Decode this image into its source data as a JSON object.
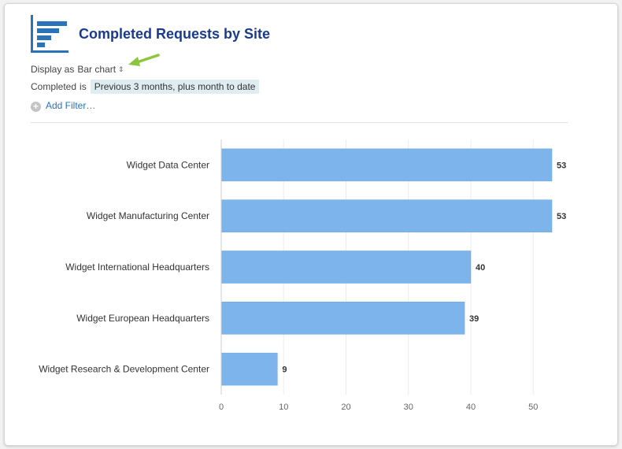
{
  "header": {
    "title": "Completed Requests by Site"
  },
  "display": {
    "prefix": "Display as",
    "chart_type": "Bar chart"
  },
  "filter": {
    "field": "Completed",
    "operator": "is",
    "value": "Previous 3 months, plus month to date"
  },
  "add_filter": {
    "label": "Add Filter…"
  },
  "colors": {
    "bar": "#7eb4ec",
    "bar_stroke": "#6aa3e0",
    "title": "#1a3a8c",
    "link": "#2a73c2",
    "arrow": "#8cc63f"
  },
  "chart_data": {
    "type": "bar",
    "orientation": "horizontal",
    "title": "",
    "xlabel": "",
    "ylabel": "",
    "categories": [
      "Widget Data Center",
      "Widget Manufacturing Center",
      "Widget International Headquarters",
      "Widget European Headquarters",
      "Widget Research & Development Center"
    ],
    "values": [
      53,
      53,
      40,
      39,
      9
    ],
    "xlim": [
      0,
      53
    ],
    "xticks": [
      0,
      10,
      20,
      30,
      40,
      50
    ],
    "grid": true,
    "data_labels": true
  }
}
